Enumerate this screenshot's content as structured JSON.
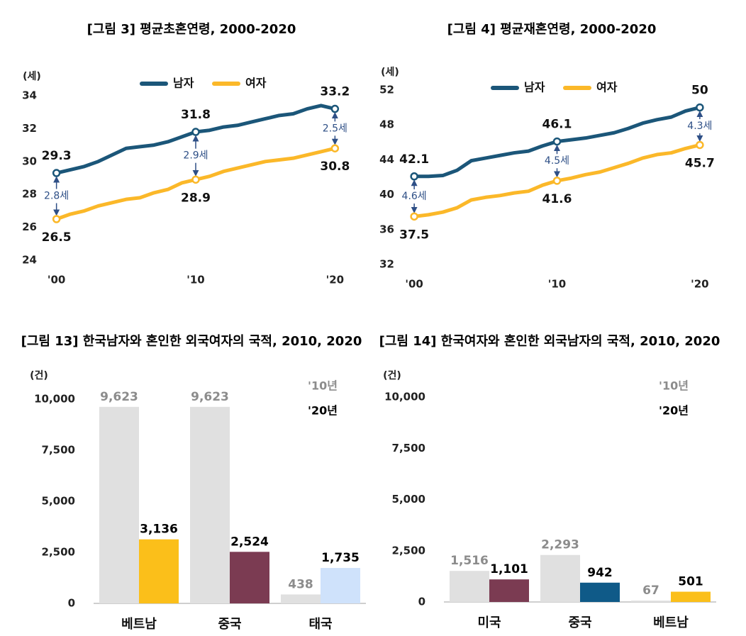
{
  "chart_data": [
    {
      "type": "line",
      "title": "[그림 3] 평균초혼연령, 2000-2020",
      "y_unit": "(세)",
      "x": [
        2000,
        2001,
        2002,
        2003,
        2004,
        2005,
        2006,
        2007,
        2008,
        2009,
        2010,
        2011,
        2012,
        2013,
        2014,
        2015,
        2016,
        2017,
        2018,
        2019,
        2020
      ],
      "xlim": [
        1999,
        2021
      ],
      "xticks": [
        {
          "value": 2000,
          "label": "'00"
        },
        {
          "value": 2010,
          "label": "'10"
        },
        {
          "value": 2020,
          "label": "'20"
        }
      ],
      "ylim": [
        24,
        34
      ],
      "yticks": [
        24,
        26,
        28,
        30,
        32,
        34
      ],
      "series": [
        {
          "name": "남자",
          "color": "#1b5679",
          "values": [
            29.3,
            29.5,
            29.7,
            30.0,
            30.4,
            30.8,
            30.9,
            31.0,
            31.2,
            31.5,
            31.8,
            31.9,
            32.1,
            32.2,
            32.4,
            32.6,
            32.8,
            32.9,
            33.2,
            33.4,
            33.2
          ]
        },
        {
          "name": "여자",
          "color": "#fbb829",
          "values": [
            26.5,
            26.8,
            27.0,
            27.3,
            27.5,
            27.7,
            27.8,
            28.1,
            28.3,
            28.7,
            28.9,
            29.1,
            29.4,
            29.6,
            29.8,
            30.0,
            30.1,
            30.2,
            30.4,
            30.6,
            30.8
          ]
        }
      ],
      "annotations": [
        {
          "text": "2.8세",
          "x": 2000
        },
        {
          "text": "2.9세",
          "x": 2010
        },
        {
          "text": "2.5세",
          "x": 2020
        }
      ]
    },
    {
      "type": "line",
      "title": "[그림 4] 평균재혼연령, 2000-2020",
      "y_unit": "(세)",
      "x": [
        2000,
        2001,
        2002,
        2003,
        2004,
        2005,
        2006,
        2007,
        2008,
        2009,
        2010,
        2011,
        2012,
        2013,
        2014,
        2015,
        2016,
        2017,
        2018,
        2019,
        2020
      ],
      "xlim": [
        1999,
        2021
      ],
      "xticks": [
        {
          "value": 2000,
          "label": "'00"
        },
        {
          "value": 2010,
          "label": "'10"
        },
        {
          "value": 2020,
          "label": "'20"
        }
      ],
      "ylim": [
        32,
        52
      ],
      "yticks": [
        32,
        36,
        40,
        44,
        48,
        52
      ],
      "series": [
        {
          "name": "남자",
          "color": "#1b5679",
          "values": [
            42.1,
            42.1,
            42.2,
            42.8,
            43.9,
            44.2,
            44.5,
            44.8,
            45.0,
            45.6,
            46.1,
            46.3,
            46.5,
            46.8,
            47.1,
            47.6,
            48.2,
            48.6,
            48.9,
            49.6,
            50.0
          ]
        },
        {
          "name": "여자",
          "color": "#fbb829",
          "values": [
            37.5,
            37.7,
            38.0,
            38.5,
            39.4,
            39.7,
            39.9,
            40.2,
            40.4,
            41.1,
            41.6,
            41.9,
            42.3,
            42.6,
            43.1,
            43.6,
            44.2,
            44.6,
            44.8,
            45.3,
            45.7
          ]
        }
      ],
      "annotations": [
        {
          "text": "4.6세",
          "x": 2000
        },
        {
          "text": "4.5세",
          "x": 2010
        },
        {
          "text": "4.3세",
          "x": 2020
        }
      ]
    },
    {
      "type": "bar",
      "title": "[그림 13] 한국남자와 혼인한 외국여자의 국적, 2010, 2020",
      "y_unit": "(건)",
      "categories": [
        "베트남",
        "중국",
        "태국"
      ],
      "ylim": [
        0,
        10000
      ],
      "yticks": [
        0,
        {
          "value": 2500,
          "label": "2,500"
        },
        {
          "value": 5000,
          "label": "5,000"
        },
        {
          "value": 7500,
          "label": "7,500"
        },
        {
          "value": 10000,
          "label": "10,000"
        }
      ],
      "series": [
        {
          "name": "'10년",
          "color": "#e0e0e0",
          "label_color": "#8c8c8c",
          "values": [
            9623,
            9623,
            438
          ],
          "value_labels": [
            "9,623",
            "9,623",
            "438"
          ]
        },
        {
          "name": "'20년",
          "colors": [
            "#fbbf1a",
            "#7b3b52",
            "#cfe2fb"
          ],
          "label_color": "#000000",
          "values": [
            3136,
            2524,
            1735
          ],
          "value_labels": [
            "3,136",
            "2,524",
            "1,735"
          ]
        }
      ]
    },
    {
      "type": "bar",
      "title": "[그림 14] 한국여자와 혼인한 외국남자의 국적, 2010, 2020",
      "y_unit": "(건)",
      "categories": [
        "미국",
        "중국",
        "베트남"
      ],
      "ylim": [
        0,
        10000
      ],
      "yticks": [
        0,
        {
          "value": 2500,
          "label": "2,500"
        },
        {
          "value": 5000,
          "label": "5,000"
        },
        {
          "value": 7500,
          "label": "7,500"
        },
        {
          "value": 10000,
          "label": "10,000"
        }
      ],
      "series": [
        {
          "name": "'10년",
          "color": "#e0e0e0",
          "label_color": "#8c8c8c",
          "values": [
            1516,
            2293,
            67
          ],
          "value_labels": [
            "1,516",
            "2,293",
            "67"
          ]
        },
        {
          "name": "'20년",
          "colors": [
            "#7b3b52",
            "#0f5a88",
            "#fbbf1a"
          ],
          "label_color": "#000000",
          "values": [
            1101,
            942,
            501
          ],
          "value_labels": [
            "1,101",
            "942",
            "501"
          ]
        }
      ]
    }
  ]
}
